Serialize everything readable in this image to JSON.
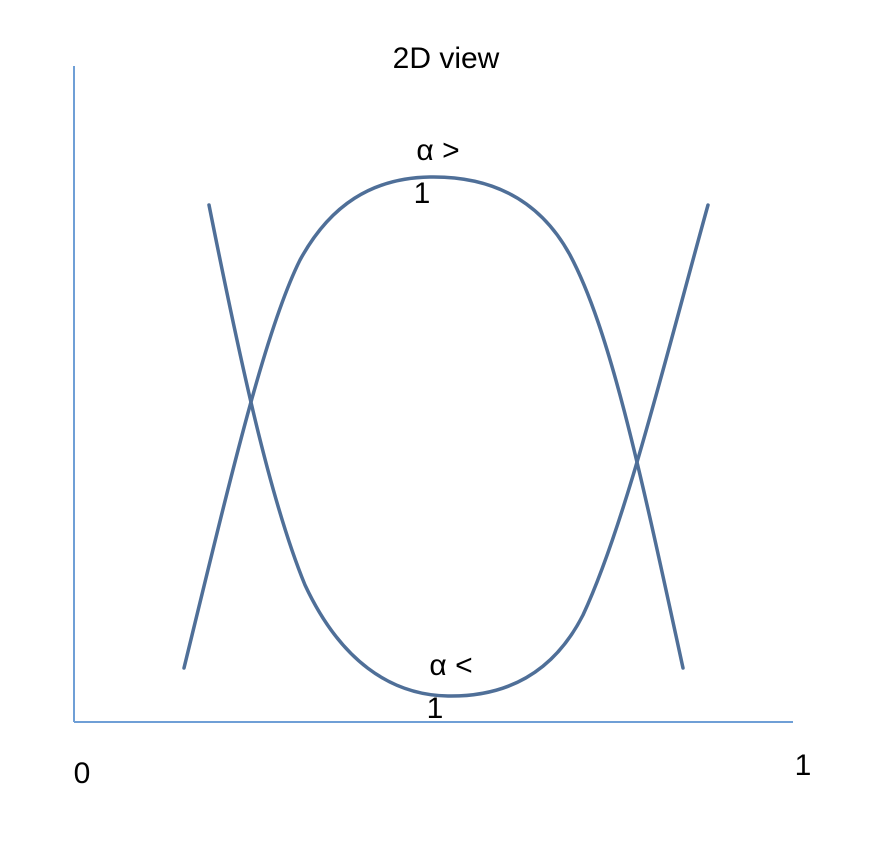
{
  "title": "2D view",
  "x_axis": {
    "min_label": "0",
    "max_label": "1"
  },
  "curves": [
    {
      "label_line1": "α >",
      "label_line2": "1"
    },
    {
      "label_line1": "α <",
      "label_line2": "1"
    }
  ],
  "colors": {
    "curve": "#4f6f98",
    "axis": "#6f9fd6"
  }
}
